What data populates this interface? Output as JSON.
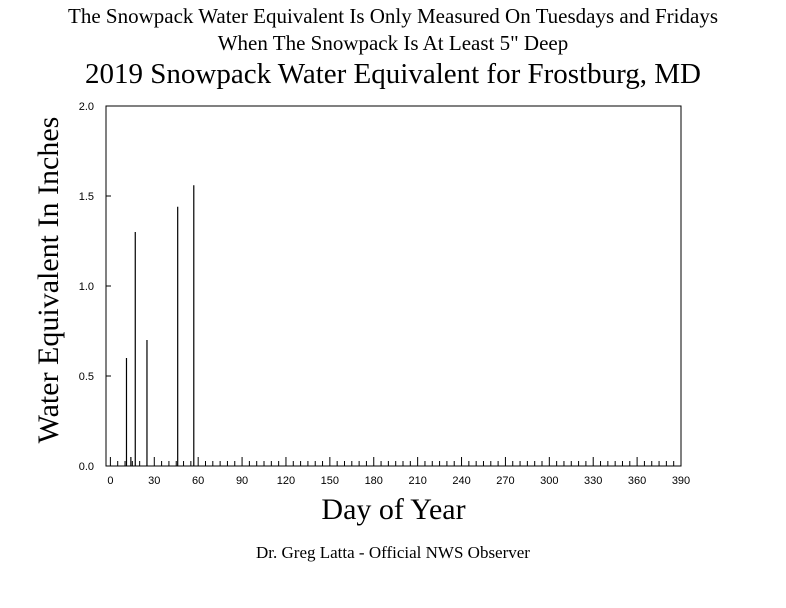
{
  "header": {
    "note_line1": "The Snowpack Water Equivalent Is Only Measured On Tuesdays and Fridays",
    "note_line2": "When The Snowpack Is At Least 5\" Deep",
    "title": "2019 Snowpack Water Equivalent for Frostburg, MD"
  },
  "footer": {
    "credit": "Dr. Greg Latta - Official NWS Observer"
  },
  "chart_data": {
    "type": "bar",
    "title": "2019 Snowpack Water Equivalent for Frostburg, MD",
    "xlabel": "Day of Year",
    "ylabel": "Water Equivalent In Inches",
    "xlim": [
      -3,
      390
    ],
    "ylim": [
      0,
      2
    ],
    "x_ticks": [
      0,
      30,
      60,
      90,
      120,
      150,
      180,
      210,
      240,
      270,
      300,
      330,
      360,
      390
    ],
    "y_ticks": [
      0,
      0.5,
      1,
      1.5,
      2
    ],
    "y_tick_labels": [
      "0.0",
      "0.5",
      "1.0",
      "1.5",
      "2.0"
    ],
    "grid": false,
    "legend": "none",
    "bar_color": "#000000",
    "x": [
      11,
      14,
      17,
      25,
      46,
      57
    ],
    "values": [
      0.6,
      0.05,
      1.3,
      0.7,
      1.44,
      1.56
    ]
  }
}
